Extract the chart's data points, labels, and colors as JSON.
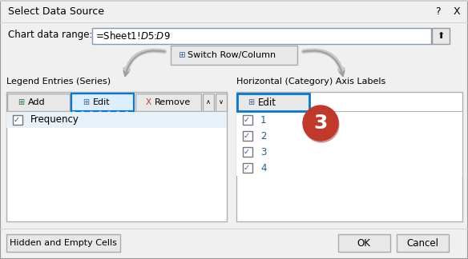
{
  "title": "Select Data Source",
  "chart_data_range_label": "Chart data range:",
  "chart_data_range_value": "=Sheet1!$D$5:$D$9",
  "switch_btn_label": "Switch Row/Column",
  "legend_section_title": "Legend Entries (Series)",
  "legend_buttons": [
    "Add",
    "Edit",
    "Remove"
  ],
  "legend_item": "Frequency",
  "axis_section_title": "Horizontal (Category) Axis Labels",
  "axis_edit_btn": "Edit",
  "axis_items": [
    "1",
    "2",
    "3",
    "4"
  ],
  "bottom_left_btn": "Hidden and Empty Cells",
  "bottom_right_btns": [
    "OK",
    "Cancel"
  ],
  "number_label": "3",
  "bg_color": "#f0f0f0",
  "white": "#ffffff",
  "blue_border": "#0078d7",
  "blue_text": "#1f5c99",
  "red_circle": "#c0392b",
  "checkbox_blue": "#1f5c99",
  "remove_red": "#c0392b",
  "add_green": "#217346",
  "panel_border": "#b0b0b0",
  "btn_face": "#e8e8e8",
  "input_border": "#7f9db9",
  "arrow_fill": "#c8c8c8",
  "arrow_edge": "#a0a0a0",
  "title_bg": "#f0f0f0",
  "divider": "#d4d4d4"
}
